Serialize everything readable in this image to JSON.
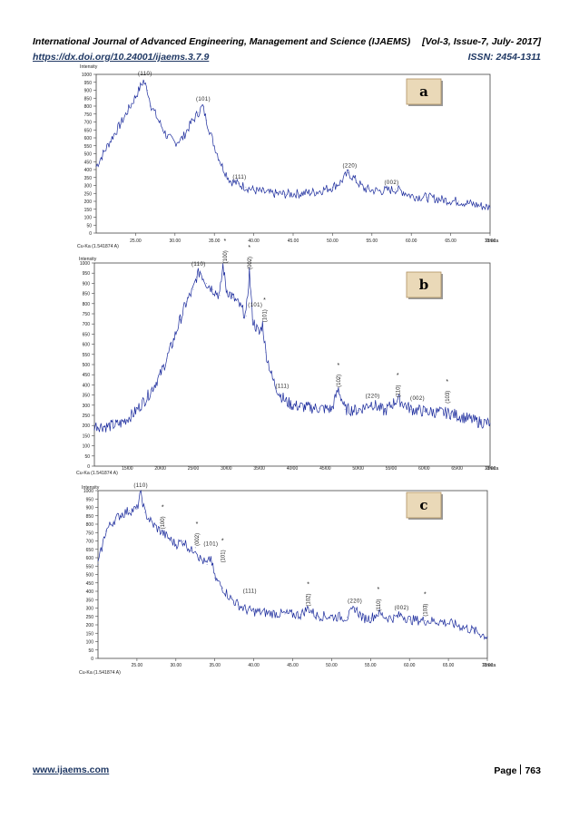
{
  "header": {
    "journal": "International Journal of Advanced Engineering, Management and Science (IJAEMS)",
    "volume": "[Vol-3, Issue-7, July- 2017]",
    "doi": "https://dx.doi.org/10.24001/ijaems.3.7.9",
    "issn": "ISSN: 2454-1311"
  },
  "footer": {
    "site": "www.ijaems.com",
    "page_label": "Page",
    "page_number": "763"
  },
  "chart_data": [
    {
      "type": "line",
      "panel_label": "a",
      "ylabel": "Intensity",
      "xlabel": "2theta",
      "radiation": "Cu-Ka (1.541874 A)",
      "xlim": [
        20,
        70
      ],
      "ylim": [
        0,
        1000
      ],
      "yticks": [
        "0",
        "50",
        "100",
        "150",
        "200",
        "250",
        "300",
        "350",
        "400",
        "450",
        "500",
        "550",
        "600",
        "650",
        "700",
        "750",
        "800",
        "850",
        "900",
        "950",
        "1000"
      ],
      "xticks": [
        "25.00",
        "30.00",
        "35.00",
        "40.00",
        "45.00",
        "50.00",
        "55.00",
        "60.00",
        "65.00",
        "70.00"
      ],
      "x": [
        20,
        21,
        22,
        23,
        24,
        25,
        25.5,
        26,
        26.5,
        27,
        28,
        29,
        30,
        31,
        32,
        33,
        33.5,
        34,
        35,
        36,
        37,
        38,
        39,
        40,
        42,
        44,
        46,
        48,
        50,
        51,
        52,
        53,
        54,
        55,
        56,
        57,
        58,
        59,
        60,
        62,
        64,
        66,
        68,
        70
      ],
      "y": [
        420,
        510,
        600,
        680,
        770,
        860,
        910,
        960,
        900,
        800,
        700,
        610,
        570,
        600,
        690,
        760,
        800,
        710,
        550,
        420,
        330,
        310,
        290,
        270,
        250,
        245,
        250,
        260,
        290,
        320,
        380,
        330,
        280,
        270,
        265,
        270,
        275,
        260,
        235,
        225,
        210,
        200,
        180,
        160
      ],
      "annotations": [
        {
          "text": "(110)",
          "x": 26.2,
          "y": 960
        },
        {
          "text": "(101)",
          "x": 33.6,
          "y": 800
        },
        {
          "text": "(111)",
          "x": 38.2,
          "y": 310
        },
        {
          "text": "(220)",
          "x": 52.2,
          "y": 380
        },
        {
          "text": "(002)",
          "x": 57.5,
          "y": 275
        }
      ],
      "asterisks": []
    },
    {
      "type": "line",
      "panel_label": "b",
      "ylabel": "Intensity",
      "xlabel": "2theta",
      "radiation": "Cu-Ka (1.541874 A)",
      "xlim": [
        10,
        70
      ],
      "ylim": [
        0,
        1000
      ],
      "yticks": [
        "0",
        "50",
        "100",
        "150",
        "200",
        "250",
        "300",
        "350",
        "400",
        "450",
        "500",
        "550",
        "600",
        "650",
        "700",
        "750",
        "800",
        "850",
        "900",
        "950",
        "1000"
      ],
      "xticks": [
        "15.00",
        "20.00",
        "25.00",
        "30.00",
        "35.00",
        "40.00",
        "45.00",
        "50.00",
        "55.00",
        "60.00",
        "65.00",
        "70.00"
      ],
      "x": [
        10,
        12,
        14,
        16,
        18,
        20,
        21,
        22,
        23,
        24,
        25,
        25.5,
        26,
        27,
        28,
        29,
        29.5,
        30,
        31,
        32,
        33,
        33.5,
        34,
        35,
        35.5,
        36,
        37,
        38,
        39,
        40,
        42,
        44,
        46,
        47,
        48,
        50,
        52,
        54,
        56,
        58,
        60,
        62,
        64,
        66,
        68,
        70
      ],
      "y": [
        200,
        195,
        210,
        260,
        340,
        450,
        530,
        620,
        720,
        810,
        870,
        930,
        960,
        900,
        870,
        840,
        990,
        870,
        830,
        790,
        740,
        960,
        720,
        650,
        700,
        560,
        430,
        360,
        320,
        300,
        290,
        285,
        280,
        380,
        280,
        275,
        310,
        270,
        330,
        280,
        270,
        265,
        260,
        240,
        220,
        210
      ],
      "annotations": [
        {
          "text": "(110)",
          "x": 25.8,
          "y": 960
        },
        {
          "text": "(100)",
          "x": 29.8,
          "y": 990
        },
        {
          "text": "(002)",
          "x": 33.5,
          "y": 960
        },
        {
          "text": "(101)",
          "x": 34.4,
          "y": 760
        },
        {
          "text": "(101)",
          "x": 35.8,
          "y": 700
        },
        {
          "text": "(111)",
          "x": 38.5,
          "y": 360
        },
        {
          "text": "(102)",
          "x": 47.0,
          "y": 380
        },
        {
          "text": "(220)",
          "x": 52.2,
          "y": 310
        },
        {
          "text": "(110)",
          "x": 56.0,
          "y": 330
        },
        {
          "text": "(002)",
          "x": 59.0,
          "y": 300
        },
        {
          "text": "(103)",
          "x": 63.5,
          "y": 300
        }
      ],
      "asterisks": [
        {
          "x": 29.8,
          "y": 990
        },
        {
          "x": 33.5,
          "y": 960
        },
        {
          "x": 35.8,
          "y": 700
        },
        {
          "x": 47.0,
          "y": 380
        },
        {
          "x": 56.0,
          "y": 330
        },
        {
          "x": 63.5,
          "y": 300
        }
      ]
    },
    {
      "type": "line",
      "panel_label": "c",
      "ylabel": "Intensity",
      "xlabel": "2theta",
      "radiation": "Cu-Ka (1.541874 A)",
      "xlim": [
        20,
        70
      ],
      "ylim": [
        0,
        1000
      ],
      "yticks": [
        "0",
        "50",
        "100",
        "150",
        "200",
        "250",
        "300",
        "350",
        "400",
        "450",
        "500",
        "550",
        "600",
        "650",
        "700",
        "750",
        "800",
        "850",
        "900",
        "950",
        "1000"
      ],
      "xticks": [
        "25.00",
        "30.00",
        "35.00",
        "40.00",
        "45.00",
        "50.00",
        "55.00",
        "60.00",
        "65.00",
        "70.00"
      ],
      "x": [
        20,
        21,
        22,
        23,
        24,
        25,
        25.5,
        26,
        27,
        28,
        29,
        30,
        31,
        32,
        32.5,
        33,
        34,
        34.5,
        35,
        36,
        37,
        38,
        39,
        40,
        42,
        44,
        46,
        47,
        48,
        50,
        52,
        53,
        54,
        55,
        56,
        57,
        58,
        59,
        60,
        62,
        64,
        66,
        68,
        70
      ],
      "y": [
        560,
        760,
        820,
        860,
        880,
        890,
        990,
        870,
        800,
        760,
        720,
        680,
        700,
        640,
        660,
        600,
        560,
        600,
        480,
        420,
        360,
        320,
        290,
        280,
        270,
        265,
        260,
        300,
        255,
        250,
        245,
        300,
        240,
        240,
        270,
        245,
        240,
        260,
        230,
        225,
        220,
        200,
        170,
        130
      ],
      "annotations": [
        {
          "text": "(110)",
          "x": 25.5,
          "y": 990
        },
        {
          "text": "(100)",
          "x": 28.3,
          "y": 760
        },
        {
          "text": "(002)",
          "x": 32.7,
          "y": 660
        },
        {
          "text": "(101)",
          "x": 34.5,
          "y": 640
        },
        {
          "text": "(101)",
          "x": 36.0,
          "y": 560
        },
        {
          "text": "(111)",
          "x": 39.5,
          "y": 360
        },
        {
          "text": "(102)",
          "x": 47.0,
          "y": 300
        },
        {
          "text": "(220)",
          "x": 53.0,
          "y": 300
        },
        {
          "text": "(110)",
          "x": 56.0,
          "y": 270
        },
        {
          "text": "(002)",
          "x": 59.0,
          "y": 260
        },
        {
          "text": "(103)",
          "x": 62.0,
          "y": 240
        }
      ],
      "asterisks": [
        {
          "x": 28.3,
          "y": 760
        },
        {
          "x": 32.7,
          "y": 660
        },
        {
          "x": 36.0,
          "y": 560
        },
        {
          "x": 47.0,
          "y": 300
        },
        {
          "x": 56.0,
          "y": 270
        },
        {
          "x": 62.0,
          "y": 240
        }
      ]
    }
  ]
}
